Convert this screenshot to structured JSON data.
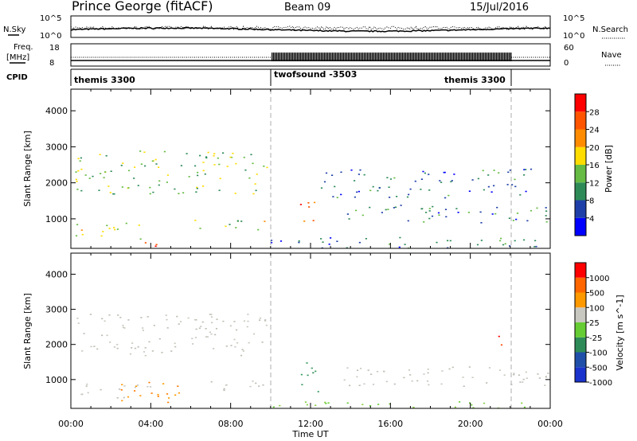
{
  "header": {
    "station": "Prince George (fitACF)",
    "beam": "Beam 09",
    "date": "15/Jul/2016"
  },
  "top_panels": {
    "nsky_label": "N.Sky",
    "nsky_ticks": [
      "10^5",
      "10^0"
    ],
    "nsearch_label": "N.Search",
    "nsearch_ticks": [
      "10^5",
      "10^0"
    ],
    "freq_label": "Freq.",
    "freq_unit": "[MHz]",
    "freq_ticks": [
      "18",
      "8"
    ],
    "nave_label": "Nave",
    "nave_ticks": [
      "60",
      "0"
    ],
    "cpid_label": "CPID",
    "cpid_segments": [
      {
        "label": "themis 3300",
        "start": 0,
        "end": 10
      },
      {
        "label": "twofsound -3503",
        "start": 10,
        "end": 22
      },
      {
        "label": "themis 3300",
        "start": 22,
        "end": 24
      }
    ]
  },
  "chart_data": [
    {
      "type": "heatmap",
      "name": "power",
      "xlabel": "Time UT",
      "ylabel": "Slant Range [km]",
      "xlim": [
        0,
        24
      ],
      "ylim": [
        180,
        4600
      ],
      "yticks": [
        "1000",
        "2000",
        "3000",
        "4000"
      ],
      "colorbar": {
        "label": "Power [dB]",
        "range": [
          0,
          32
        ],
        "ticks": [
          "4",
          "8",
          "12",
          "16",
          "20",
          "24",
          "28"
        ],
        "colors": [
          "#0000ff",
          "#1f3fa8",
          "#2e8b57",
          "#66bb44",
          "#ffdd00",
          "#ff8c00",
          "#ff5500",
          "#ff0000"
        ]
      },
      "bands": [
        {
          "t": [
            0.2,
            9.8
          ],
          "r": [
            1700,
            2900
          ],
          "level": 12
        },
        {
          "t": [
            0.2,
            4.0
          ],
          "r": [
            450,
            900
          ],
          "level": 16
        },
        {
          "t": [
            3.0,
            5.0
          ],
          "r": [
            250,
            450
          ],
          "level": 24
        },
        {
          "t": [
            6.0,
            9.8
          ],
          "r": [
            700,
            1000
          ],
          "level": 14
        },
        {
          "t": [
            11.3,
            12.6
          ],
          "r": [
            900,
            1500
          ],
          "level": 24
        },
        {
          "t": [
            10.0,
            24.0
          ],
          "r": [
            200,
            500
          ],
          "level": 6
        },
        {
          "t": [
            13.5,
            24.0
          ],
          "r": [
            900,
            1400
          ],
          "level": 7
        },
        {
          "t": [
            12.5,
            23.0
          ],
          "r": [
            1600,
            2400
          ],
          "level": 6
        }
      ]
    },
    {
      "type": "heatmap",
      "name": "velocity",
      "xlabel": "Time UT",
      "ylabel": "Slant Range [km]",
      "xlim": [
        0,
        24
      ],
      "ylim": [
        180,
        4600
      ],
      "xticks": [
        "00:00",
        "04:00",
        "08:00",
        "12:00",
        "16:00",
        "20:00",
        "00:00"
      ],
      "yticks": [
        "1000",
        "2000",
        "3000",
        "4000"
      ],
      "colorbar": {
        "label": "Velocity [m s^-1]",
        "ticks": [
          "1000",
          "500",
          "100",
          "25",
          "-25",
          "-100",
          "-500",
          "-1000"
        ],
        "colors": [
          "#1a33cc",
          "#1f4fa8",
          "#2e8b57",
          "#66cc33",
          "#c8c8c0",
          "#ff9900",
          "#ff6600",
          "#ff0000"
        ]
      },
      "bands": [
        {
          "t": [
            0.2,
            9.8
          ],
          "r": [
            1700,
            2900
          ],
          "vel": "gray"
        },
        {
          "t": [
            0.2,
            4.0
          ],
          "r": [
            450,
            900
          ],
          "vel": "gray"
        },
        {
          "t": [
            2.5,
            5.5
          ],
          "r": [
            300,
            1000
          ],
          "vel": "orange"
        },
        {
          "t": [
            6.0,
            9.8
          ],
          "r": [
            700,
            1000
          ],
          "vel": "gray"
        },
        {
          "t": [
            11.5,
            12.6
          ],
          "r": [
            600,
            1500
          ],
          "vel": "green"
        },
        {
          "t": [
            10.0,
            24.0
          ],
          "r": [
            200,
            400
          ],
          "vel": "lightgreen"
        },
        {
          "t": [
            13.5,
            24.0
          ],
          "r": [
            800,
            1400
          ],
          "vel": "gray"
        },
        {
          "t": [
            21.3,
            21.9
          ],
          "r": [
            1900,
            2400
          ],
          "vel": "red"
        }
      ]
    }
  ]
}
